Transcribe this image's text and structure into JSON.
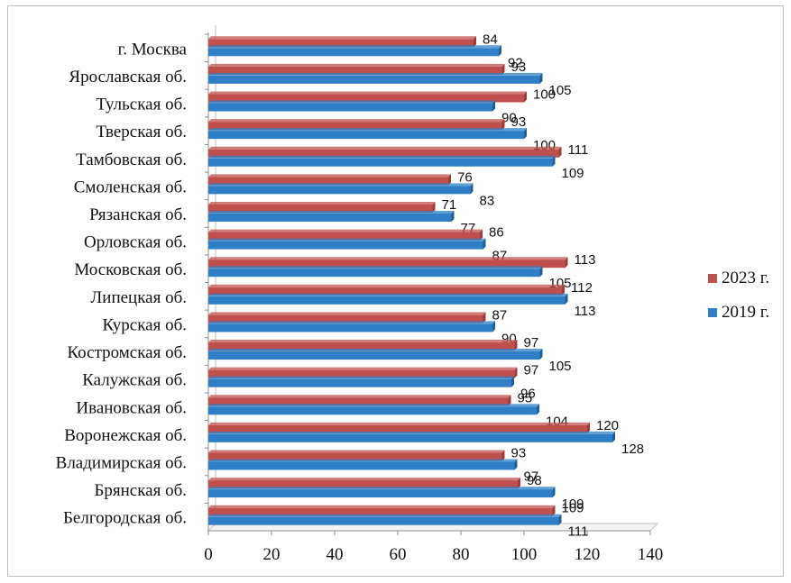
{
  "chart_data": {
    "type": "bar",
    "orientation": "horizontal",
    "categories": [
      "г. Москва",
      "Ярославская об.",
      "Тульская об.",
      "Тверская об.",
      "Тамбовская об.",
      "Смоленская об.",
      "Рязанская об.",
      "Орловская об.",
      "Московская об.",
      "Липецкая об.",
      "Курская об.",
      "Костромская об.",
      "Калужская об.",
      "Ивановская об.",
      "Воронежская об.",
      "Владимирская об.",
      "Брянская об.",
      "Белгородская об."
    ],
    "series": [
      {
        "name": "2023 г.",
        "color": "#c0504d",
        "values": [
          84,
          93,
          100,
          93,
          111,
          76,
          71,
          86,
          113,
          112,
          87,
          97,
          97,
          95,
          120,
          93,
          98,
          109
        ]
      },
      {
        "name": "2019 г.",
        "color": "#2e7fc6",
        "values": [
          92,
          105,
          90,
          100,
          109,
          83,
          77,
          87,
          105,
          113,
          90,
          105,
          96,
          104,
          128,
          97,
          109,
          111
        ]
      }
    ],
    "xlim": [
      0,
      140
    ],
    "xticks": [
      0,
      20,
      40,
      60,
      80,
      100,
      120,
      140
    ],
    "grid": false,
    "legend_position": "right"
  }
}
